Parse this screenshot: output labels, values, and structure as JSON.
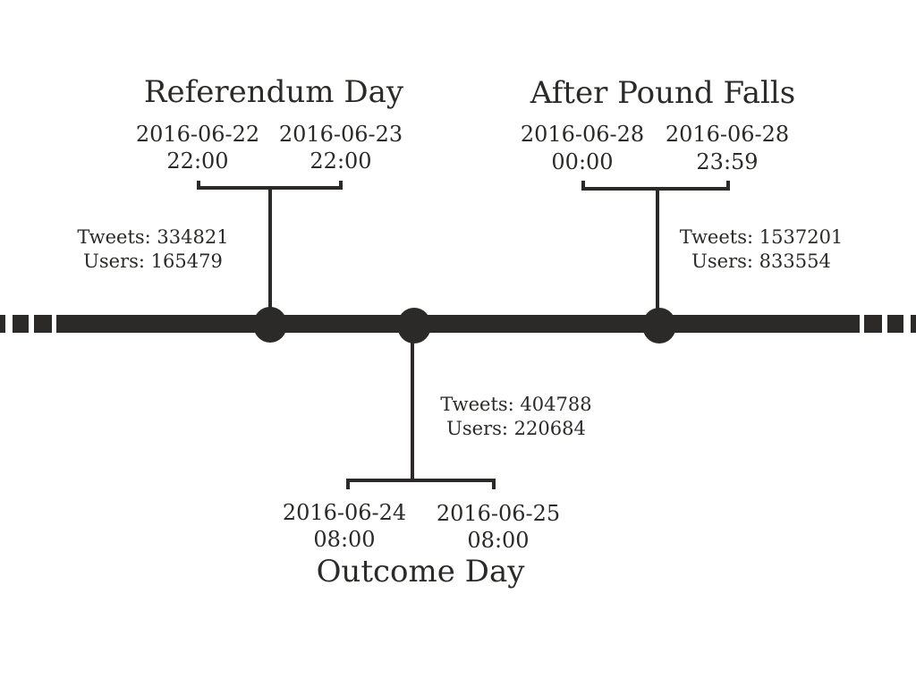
{
  "events": [
    {
      "title": "Referendum Day",
      "start_date": "2016-06-22",
      "start_time": "22:00",
      "end_date": "2016-06-23",
      "end_time": "22:00",
      "tweets_label": "Tweets: 334821",
      "users_label": "Users: 165479"
    },
    {
      "title": "Outcome Day",
      "start_date": "2016-06-24",
      "start_time": "08:00",
      "end_date": "2016-06-25",
      "end_time": "08:00",
      "tweets_label": "Tweets: 404788",
      "users_label": "Users: 220684"
    },
    {
      "title": "After Pound Falls",
      "start_date": "2016-06-28",
      "start_time": "00:00",
      "end_date": "2016-06-28",
      "end_time": "23:59",
      "tweets_label": "Tweets: 1537201",
      "users_label": "Users: 833554"
    }
  ],
  "colors": {
    "ink": "#2b2a28",
    "background": "#ffffff"
  }
}
